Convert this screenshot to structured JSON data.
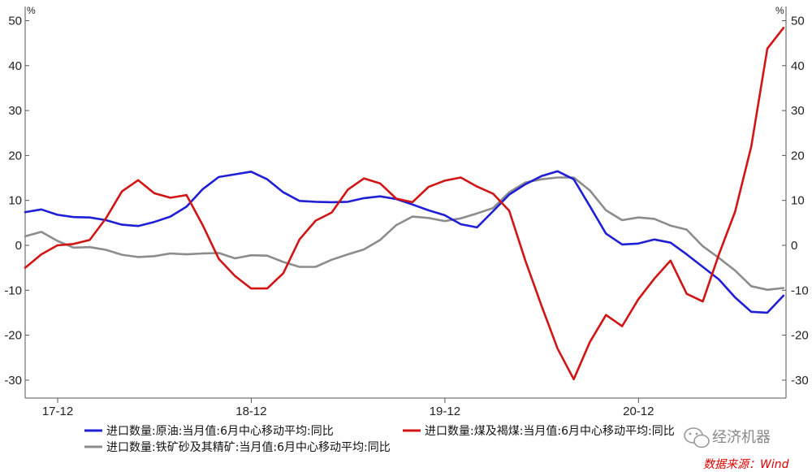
{
  "chart_data": {
    "type": "line",
    "unit_left": "%",
    "unit_right": "%",
    "ylim": [
      -35,
      52
    ],
    "y_ticks": [
      -30,
      -20,
      -10,
      0,
      10,
      20,
      30,
      40,
      50
    ],
    "x_ticks": [
      {
        "label": "17-12",
        "month": 2
      },
      {
        "label": "18-12",
        "month": 14
      },
      {
        "label": "19-12",
        "month": 26
      },
      {
        "label": "20-12",
        "month": 38
      }
    ],
    "x_range": [
      0,
      46
    ],
    "grid": false,
    "legend_position": "bottom",
    "series": [
      {
        "name": "进口数量:原油:当月值:6月中心移动平均:同比",
        "color": "#1f1fd6",
        "values": [
          7.4,
          8.0,
          6.8,
          6.3,
          6.2,
          5.6,
          4.6,
          4.3,
          5.2,
          6.4,
          8.6,
          12.5,
          15.2,
          15.8,
          16.4,
          14.7,
          11.8,
          9.9,
          9.7,
          9.6,
          9.7,
          10.5,
          10.9,
          10.3,
          9.1,
          7.8,
          6.7,
          4.7,
          4.0,
          7.6,
          11.3,
          13.6,
          15.4,
          16.5,
          14.7,
          8.7,
          2.6,
          0.2,
          0.4,
          1.3,
          0.6,
          -2.0,
          -4.8,
          -7.6,
          -11.6,
          -14.8,
          -15.0,
          -11.2
        ]
      },
      {
        "name": "进口数量:煤及褐煤:当月值:6月中心移动平均:同比",
        "color": "#d11414",
        "values": [
          -5.0,
          -2.0,
          0.0,
          0.3,
          1.2,
          6.0,
          12.0,
          14.5,
          11.6,
          10.6,
          11.2,
          4.5,
          -3.0,
          -6.8,
          -9.6,
          -9.6,
          -6.2,
          1.3,
          5.5,
          7.3,
          12.4,
          14.9,
          13.8,
          10.4,
          9.6,
          13.0,
          14.4,
          15.1,
          13.1,
          11.5,
          7.7,
          -3.4,
          -13.4,
          -23.0,
          -29.8,
          -21.5,
          -15.5,
          -18.0,
          -12.0,
          -7.4,
          -3.4,
          -10.8,
          -12.5,
          -2.0,
          7.5,
          22.0,
          43.8,
          48.4
        ]
      },
      {
        "name": "进口数量:铁矿砂及其精矿:当月值:6月中心移动平均:同比",
        "color": "#8c8c8c",
        "values": [
          2.0,
          3.0,
          1.0,
          -0.5,
          -0.4,
          -1.0,
          -2.1,
          -2.6,
          -2.4,
          -1.8,
          -2.0,
          -1.8,
          -1.7,
          -2.9,
          -2.2,
          -2.3,
          -3.7,
          -4.8,
          -4.8,
          -3.2,
          -2.0,
          -0.9,
          1.2,
          4.5,
          6.4,
          6.1,
          5.4,
          6.0,
          7.1,
          8.3,
          11.8,
          14.0,
          14.7,
          15.1,
          15.1,
          12.2,
          7.8,
          5.6,
          6.2,
          5.9,
          4.4,
          3.5,
          -0.2,
          -2.8,
          -5.6,
          -9.1,
          -9.9,
          -9.5
        ]
      }
    ]
  },
  "footer": {
    "source": "数据来源：Wind",
    "watermark": "经济机器"
  }
}
